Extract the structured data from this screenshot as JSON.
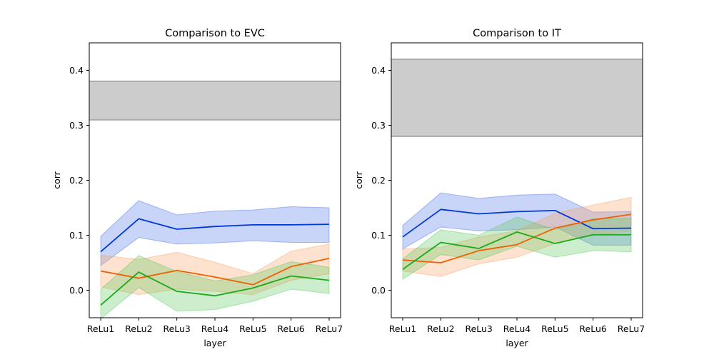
{
  "chart_data": [
    {
      "type": "line",
      "title": "Comparison to EVC",
      "xlabel": "layer",
      "ylabel": "corr",
      "categories": [
        "ReLu1",
        "ReLu2",
        "ReLu3",
        "ReLu4",
        "ReLu5",
        "ReLu6",
        "ReLu7"
      ],
      "ylim": [
        -0.05,
        0.45
      ],
      "yticks": [
        0.0,
        0.1,
        0.2,
        0.3,
        0.4
      ],
      "ytick_labels": [
        "0.0",
        "0.1",
        "0.2",
        "0.3",
        "0.4"
      ],
      "grid": false,
      "ceiling_band": {
        "lower": 0.31,
        "upper": 0.38,
        "color": "#cccccc",
        "edge_color": "#aaaaaa"
      },
      "series": [
        {
          "color": "#0039d4",
          "band_color": "#4a73e8",
          "values": [
            0.07,
            0.13,
            0.111,
            0.116,
            0.119,
            0.119,
            0.12
          ],
          "lower": [
            0.045,
            0.096,
            0.084,
            0.086,
            0.09,
            0.087,
            0.087
          ],
          "upper": [
            0.098,
            0.163,
            0.137,
            0.144,
            0.146,
            0.152,
            0.15
          ]
        },
        {
          "color": "#f06000",
          "band_color": "#f9a060",
          "values": [
            0.035,
            0.022,
            0.036,
            0.024,
            0.01,
            0.043,
            0.058
          ],
          "lower": [
            0.006,
            -0.008,
            0.002,
            -0.002,
            -0.008,
            0.018,
            0.03
          ],
          "upper": [
            0.064,
            0.056,
            0.069,
            0.051,
            0.03,
            0.071,
            0.084
          ]
        },
        {
          "color": "#1aaa1a",
          "band_color": "#5bc85b",
          "values": [
            -0.027,
            0.033,
            -0.002,
            -0.01,
            0.004,
            0.026,
            0.018
          ],
          "lower": [
            -0.052,
            0.005,
            -0.038,
            -0.035,
            -0.02,
            0.002,
            -0.006
          ],
          "upper": [
            0.002,
            0.063,
            0.034,
            0.017,
            0.028,
            0.052,
            0.042
          ]
        }
      ]
    },
    {
      "type": "line",
      "title": "Comparison to IT",
      "xlabel": "layer",
      "ylabel": "corr",
      "categories": [
        "ReLu1",
        "ReLu2",
        "ReLu3",
        "ReLu4",
        "ReLu5",
        "ReLu6",
        "ReLu7"
      ],
      "ylim": [
        -0.05,
        0.45
      ],
      "yticks": [
        0.0,
        0.1,
        0.2,
        0.3,
        0.4
      ],
      "ytick_labels": [
        "0.0",
        "0.1",
        "0.2",
        "0.3",
        "0.4"
      ],
      "grid": false,
      "ceiling_band": {
        "lower": 0.28,
        "upper": 0.42,
        "color": "#cccccc",
        "edge_color": "#aaaaaa"
      },
      "series": [
        {
          "color": "#0039d4",
          "band_color": "#4a73e8",
          "values": [
            0.097,
            0.147,
            0.139,
            0.143,
            0.145,
            0.112,
            0.113
          ],
          "lower": [
            0.075,
            0.115,
            0.108,
            0.11,
            0.115,
            0.082,
            0.082
          ],
          "upper": [
            0.118,
            0.177,
            0.167,
            0.173,
            0.175,
            0.142,
            0.143
          ]
        },
        {
          "color": "#f06000",
          "band_color": "#f9a060",
          "values": [
            0.055,
            0.05,
            0.072,
            0.083,
            0.113,
            0.128,
            0.138
          ],
          "lower": [
            0.035,
            0.025,
            0.048,
            0.06,
            0.085,
            0.1,
            0.108
          ],
          "upper": [
            0.075,
            0.078,
            0.097,
            0.108,
            0.14,
            0.155,
            0.169
          ]
        },
        {
          "color": "#1aaa1a",
          "band_color": "#5bc85b",
          "values": [
            0.038,
            0.087,
            0.076,
            0.106,
            0.085,
            0.101,
            0.101
          ],
          "lower": [
            0.02,
            0.065,
            0.055,
            0.08,
            0.06,
            0.072,
            0.07
          ],
          "upper": [
            0.057,
            0.11,
            0.1,
            0.133,
            0.11,
            0.13,
            0.131
          ]
        }
      ]
    }
  ]
}
